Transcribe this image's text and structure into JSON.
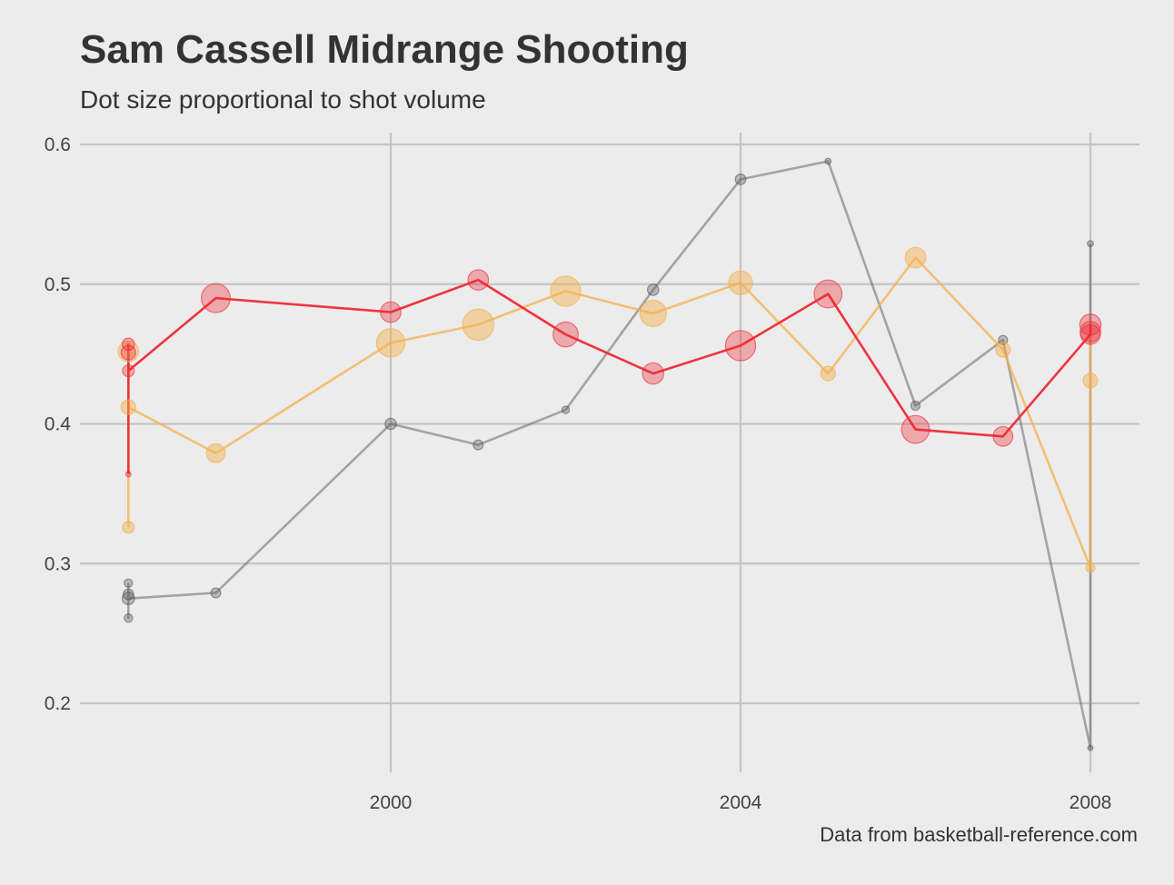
{
  "chart_data": {
    "type": "scatter",
    "title": "Sam Cassell Midrange Shooting",
    "subtitle": "Dot size proportional to shot volume",
    "caption": "Data from basketball-reference.com",
    "xlabel": "",
    "ylabel": "",
    "xlim": [
      1997,
      2008.5
    ],
    "ylim": [
      0.15,
      0.61
    ],
    "x_ticks": [
      {
        "value": 2000,
        "label": "2000"
      },
      {
        "value": 2004,
        "label": "2004"
      },
      {
        "value": 2008,
        "label": "2008"
      }
    ],
    "y_ticks": [
      {
        "value": 0.2,
        "label": "0.2"
      },
      {
        "value": 0.3,
        "label": "0.3"
      },
      {
        "value": 0.4,
        "label": "0.4"
      },
      {
        "value": 0.5,
        "label": "0.5"
      },
      {
        "value": 0.6,
        "label": "0.6"
      }
    ],
    "grid": true,
    "legend": "none",
    "series": [
      {
        "color": "#595959",
        "point_opacity": 0.35,
        "line_opacity": 0.5,
        "points": [
          {
            "x": 1997,
            "y": 0.286,
            "volume": 1.0
          },
          {
            "x": 1997,
            "y": 0.278,
            "volume": 1.6
          },
          {
            "x": 1997,
            "y": 0.275,
            "volume": 2.2
          },
          {
            "x": 1997,
            "y": 0.261,
            "volume": 1.0
          },
          {
            "x": 1998,
            "y": 0.279,
            "volume": 1.4
          },
          {
            "x": 2000,
            "y": 0.4,
            "volume": 1.8
          },
          {
            "x": 2001,
            "y": 0.385,
            "volume": 1.4
          },
          {
            "x": 2002,
            "y": 0.41,
            "volume": 0.8
          },
          {
            "x": 2003,
            "y": 0.496,
            "volume": 1.8
          },
          {
            "x": 2004,
            "y": 0.575,
            "volume": 1.6
          },
          {
            "x": 2005,
            "y": 0.588,
            "volume": 0.5
          },
          {
            "x": 2006,
            "y": 0.413,
            "volume": 1.2
          },
          {
            "x": 2007,
            "y": 0.46,
            "volume": 1.2
          },
          {
            "x": 2008,
            "y": 0.529,
            "volume": 0.5
          },
          {
            "x": 2008,
            "y": 0.168,
            "volume": 0.3
          }
        ],
        "line": [
          {
            "x": 1997,
            "y": 0.286
          },
          {
            "x": 1997,
            "y": 0.261
          },
          {
            "x": 1997,
            "y": 0.275
          },
          {
            "x": 1998,
            "y": 0.279
          },
          {
            "x": 2000,
            "y": 0.4
          },
          {
            "x": 2001,
            "y": 0.385
          },
          {
            "x": 2002,
            "y": 0.41
          },
          {
            "x": 2003,
            "y": 0.496
          },
          {
            "x": 2004,
            "y": 0.575
          },
          {
            "x": 2005,
            "y": 0.588
          },
          {
            "x": 2006,
            "y": 0.413
          },
          {
            "x": 2007,
            "y": 0.46
          },
          {
            "x": 2008,
            "y": 0.168
          },
          {
            "x": 2008,
            "y": 0.529
          }
        ]
      },
      {
        "color": "#f5b04e",
        "point_opacity": 0.45,
        "line_opacity": 0.75,
        "points": [
          {
            "x": 1997,
            "y": 0.452,
            "volume": 6.0
          },
          {
            "x": 1997,
            "y": 0.412,
            "volume": 3.0
          },
          {
            "x": 1997,
            "y": 0.326,
            "volume": 2.0
          },
          {
            "x": 1998,
            "y": 0.379,
            "volume": 5.0
          },
          {
            "x": 2000,
            "y": 0.458,
            "volume": 11.5
          },
          {
            "x": 2001,
            "y": 0.471,
            "volume": 14.0
          },
          {
            "x": 2002,
            "y": 0.495,
            "volume": 13.0
          },
          {
            "x": 2003,
            "y": 0.479,
            "volume": 10.0
          },
          {
            "x": 2004,
            "y": 0.501,
            "volume": 8.0
          },
          {
            "x": 2005,
            "y": 0.436,
            "volume": 3.0
          },
          {
            "x": 2006,
            "y": 0.519,
            "volume": 6.0
          },
          {
            "x": 2007,
            "y": 0.453,
            "volume": 3.0
          },
          {
            "x": 2008,
            "y": 0.431,
            "volume": 3.0
          },
          {
            "x": 2008,
            "y": 0.297,
            "volume": 1.2
          }
        ],
        "line": [
          {
            "x": 1997,
            "y": 0.326
          },
          {
            "x": 1997,
            "y": 0.452
          },
          {
            "x": 1997,
            "y": 0.412
          },
          {
            "x": 1998,
            "y": 0.379
          },
          {
            "x": 2000,
            "y": 0.458
          },
          {
            "x": 2001,
            "y": 0.471
          },
          {
            "x": 2002,
            "y": 0.495
          },
          {
            "x": 2003,
            "y": 0.479
          },
          {
            "x": 2004,
            "y": 0.501
          },
          {
            "x": 2005,
            "y": 0.436
          },
          {
            "x": 2006,
            "y": 0.519
          },
          {
            "x": 2007,
            "y": 0.453
          },
          {
            "x": 2008,
            "y": 0.297
          },
          {
            "x": 2008,
            "y": 0.466
          }
        ]
      },
      {
        "color": "#ee2a35",
        "point_opacity": 0.35,
        "line_opacity": 0.95,
        "points": [
          {
            "x": 1997,
            "y": 0.457,
            "volume": 2.2
          },
          {
            "x": 1997,
            "y": 0.451,
            "volume": 3.0
          },
          {
            "x": 1997,
            "y": 0.438,
            "volume": 2.0
          },
          {
            "x": 1997,
            "y": 0.364,
            "volume": 0.4
          },
          {
            "x": 1998,
            "y": 0.49,
            "volume": 12.0
          },
          {
            "x": 2000,
            "y": 0.48,
            "volume": 6.0
          },
          {
            "x": 2001,
            "y": 0.503,
            "volume": 6.0
          },
          {
            "x": 2002,
            "y": 0.464,
            "volume": 9.0
          },
          {
            "x": 2003,
            "y": 0.436,
            "volume": 6.5
          },
          {
            "x": 2004,
            "y": 0.456,
            "volume": 13.0
          },
          {
            "x": 2005,
            "y": 0.493,
            "volume": 11.0
          },
          {
            "x": 2006,
            "y": 0.396,
            "volume": 11.0
          },
          {
            "x": 2007,
            "y": 0.391,
            "volume": 5.5
          },
          {
            "x": 2008,
            "y": 0.471,
            "volume": 6.5
          },
          {
            "x": 2008,
            "y": 0.466,
            "volume": 6.0
          },
          {
            "x": 2008,
            "y": 0.464,
            "volume": 5.5
          }
        ],
        "line": [
          {
            "x": 1997,
            "y": 0.364
          },
          {
            "x": 1997,
            "y": 0.457
          },
          {
            "x": 1997,
            "y": 0.438
          },
          {
            "x": 1998,
            "y": 0.49
          },
          {
            "x": 2000,
            "y": 0.48
          },
          {
            "x": 2001,
            "y": 0.503
          },
          {
            "x": 2002,
            "y": 0.464
          },
          {
            "x": 2003,
            "y": 0.436
          },
          {
            "x": 2004,
            "y": 0.456
          },
          {
            "x": 2005,
            "y": 0.493
          },
          {
            "x": 2006,
            "y": 0.396
          },
          {
            "x": 2007,
            "y": 0.391
          },
          {
            "x": 2008,
            "y": 0.464
          },
          {
            "x": 2008,
            "y": 0.471
          }
        ]
      }
    ]
  }
}
